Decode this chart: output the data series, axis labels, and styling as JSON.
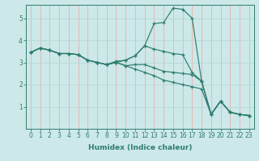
{
  "xlabel": "Humidex (Indice chaleur)",
  "bg_color": "#cce8e8",
  "line_color": "#2e7d6e",
  "grid_color_v": "#e8b0b0",
  "grid_color_h": "#b8d8d8",
  "xlim": [
    -0.5,
    23.5
  ],
  "ylim": [
    0,
    5.6
  ],
  "xticks": [
    0,
    1,
    2,
    3,
    4,
    5,
    6,
    7,
    8,
    9,
    10,
    11,
    12,
    13,
    14,
    15,
    16,
    17,
    18,
    19,
    20,
    21,
    22,
    23
  ],
  "yticks": [
    1,
    2,
    3,
    4,
    5
  ],
  "lines": [
    [
      3.45,
      3.65,
      3.55,
      3.4,
      3.4,
      3.35,
      3.1,
      3.0,
      2.9,
      3.05,
      3.1,
      3.3,
      3.75,
      4.75,
      4.8,
      5.45,
      5.4,
      5.0,
      2.15,
      0.65,
      1.25,
      0.75,
      0.65,
      0.6
    ],
    [
      3.45,
      3.65,
      3.55,
      3.4,
      3.4,
      3.35,
      3.1,
      3.0,
      2.9,
      3.0,
      3.1,
      3.3,
      3.75,
      3.6,
      3.5,
      3.4,
      3.35,
      2.55,
      2.15,
      0.65,
      1.25,
      0.75,
      0.65,
      0.6
    ],
    [
      3.45,
      3.65,
      3.55,
      3.4,
      3.4,
      3.35,
      3.1,
      3.0,
      2.9,
      3.0,
      2.85,
      2.9,
      2.9,
      2.75,
      2.6,
      2.55,
      2.5,
      2.45,
      2.15,
      0.65,
      1.25,
      0.75,
      0.65,
      0.6
    ],
    [
      3.45,
      3.65,
      3.55,
      3.4,
      3.4,
      3.35,
      3.1,
      3.0,
      2.9,
      3.0,
      2.85,
      2.7,
      2.55,
      2.4,
      2.2,
      2.1,
      2.0,
      1.9,
      1.8,
      0.65,
      1.25,
      0.75,
      0.65,
      0.6
    ]
  ]
}
